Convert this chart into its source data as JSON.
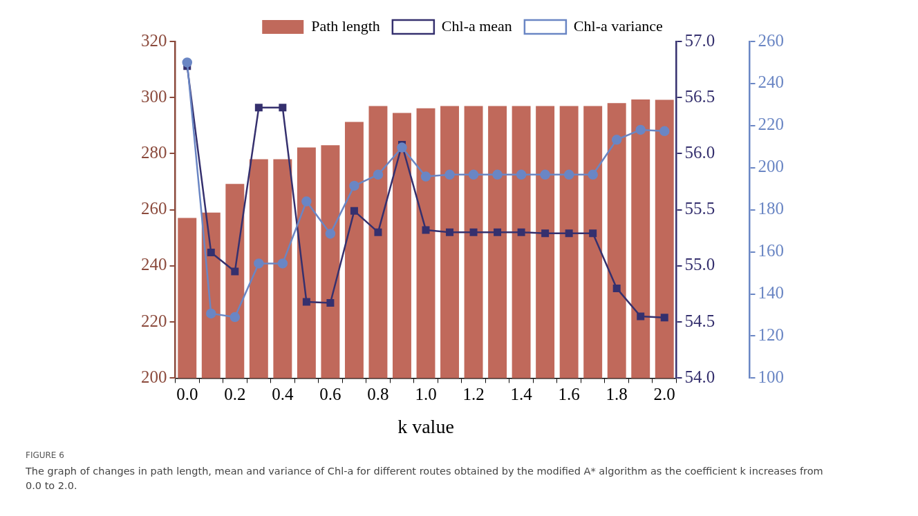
{
  "chart_data": {
    "type": "bar",
    "categories": [
      "0.0",
      null,
      "0.2",
      null,
      "0.4",
      null,
      "0.6",
      null,
      "0.8",
      null,
      "1.0",
      null,
      "1.2",
      null,
      "1.4",
      null,
      "1.6",
      null,
      "1.8",
      null,
      "2.0"
    ],
    "series": [
      {
        "name": "Path length",
        "color": "#c0695b",
        "values": [
          257.1,
          259,
          269.2,
          278,
          278,
          282.2,
          283,
          291.3,
          297,
          294.5,
          296.2,
          297,
          297,
          297,
          297,
          297,
          297,
          297,
          298,
          299.3,
          299.2
        ]
      },
      {
        "name": "Chl-a mean",
        "type": "line",
        "axis": "y2",
        "marker": "square",
        "color": "#35306e",
        "values": [
          56.78,
          55.12,
          54.95,
          56.41,
          56.41,
          54.68,
          54.67,
          55.49,
          55.3,
          56.08,
          55.32,
          55.3,
          55.3,
          55.3,
          55.3,
          55.29,
          55.29,
          55.29,
          54.8,
          54.55,
          54.54
        ]
      },
      {
        "name": "Chl-a variance",
        "type": "line",
        "axis": "y3",
        "marker": "circle",
        "color": "#6a86c4",
        "values": [
          250,
          130.7,
          129,
          154.5,
          154.5,
          184,
          168.6,
          191.4,
          196.7,
          209.6,
          195.8,
          196.7,
          196.7,
          196.7,
          196.7,
          196.7,
          196.7,
          196.7,
          213.3,
          218,
          217.4
        ]
      }
    ],
    "xlabel": "k value",
    "ylim": [
      200,
      320
    ],
    "yticks": [
      200,
      220,
      240,
      260,
      280,
      300,
      320
    ],
    "y2lim": [
      54,
      57
    ],
    "y2ticks": [
      {
        "value": 54,
        "label": "54.0"
      },
      54.5,
      {
        "value": 55,
        "label": "55.0"
      },
      55.5,
      {
        "value": 56,
        "label": "56.0"
      },
      56.5,
      {
        "value": 57,
        "label": "57.0"
      }
    ],
    "y3lim": [
      100,
      260
    ],
    "y3ticks": [
      100,
      120,
      140,
      160,
      180,
      200,
      220,
      240,
      260
    ],
    "grid": false,
    "legend": "top",
    "annotations": [
      "FIGURE 6",
      "The graph of changes in path length, mean and variance of Chl-a for different routes obtained by the modified A* algorithm as the coefficient k increases from 0.0 to 2.0."
    ]
  }
}
